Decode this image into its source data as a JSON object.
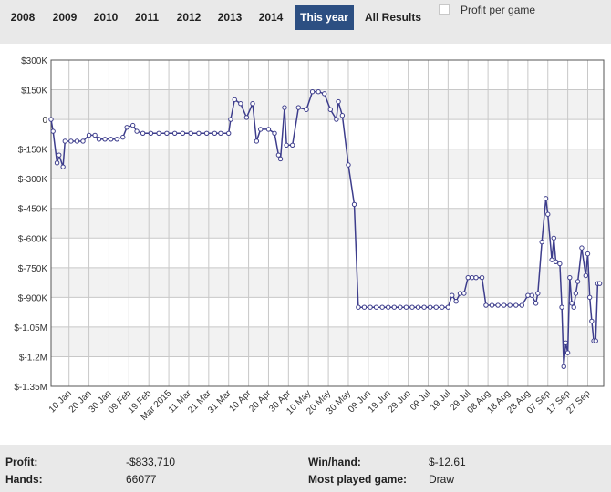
{
  "tabs": [
    {
      "label": "2008",
      "active": false
    },
    {
      "label": "2009",
      "active": false
    },
    {
      "label": "2010",
      "active": false
    },
    {
      "label": "2011",
      "active": false
    },
    {
      "label": "2012",
      "active": false
    },
    {
      "label": "2013",
      "active": false
    },
    {
      "label": "2014",
      "active": false
    },
    {
      "label": "This year",
      "active": true
    },
    {
      "label": "All Results",
      "active": false
    }
  ],
  "profit_toggle": {
    "label": "Profit per game",
    "checked": false
  },
  "stats": {
    "profit_label": "Profit:",
    "profit_value": "-$833,710",
    "hands_label": "Hands:",
    "hands_value": "66077",
    "winhand_label": "Win/hand:",
    "winhand_value": "$-12.61",
    "mostplayed_label": "Most played game:",
    "mostplayed_value": "Draw"
  },
  "colors": {
    "line": "#3d3d8c",
    "active_tab": "#2c4f82",
    "band": "#f2f2f2",
    "grid": "#c8c8c8"
  },
  "chart_data": {
    "type": "line",
    "title": "",
    "xlabel": "",
    "ylabel": "",
    "ylim": [
      -1350000,
      300000
    ],
    "xlim": [
      "2015-01-01",
      "2015-10-05"
    ],
    "grid": true,
    "y_ticks": [
      {
        "value": 300000,
        "label": "$300K"
      },
      {
        "value": 150000,
        "label": "$150K"
      },
      {
        "value": 0,
        "label": "0"
      },
      {
        "value": -150000,
        "label": "$-150K"
      },
      {
        "value": -300000,
        "label": "$-300K"
      },
      {
        "value": -450000,
        "label": "$-450K"
      },
      {
        "value": -600000,
        "label": "$-600K"
      },
      {
        "value": -750000,
        "label": "$-750K"
      },
      {
        "value": -900000,
        "label": "$-900K"
      },
      {
        "value": -1050000,
        "label": "$-1.05M"
      },
      {
        "value": -1200000,
        "label": "$-1.2M"
      },
      {
        "value": -1350000,
        "label": "$-1.35M"
      }
    ],
    "x_ticks": [
      {
        "date": "2015-01-10",
        "label": "10 Jan"
      },
      {
        "date": "2015-01-20",
        "label": "20 Jan"
      },
      {
        "date": "2015-01-30",
        "label": "30 Jan"
      },
      {
        "date": "2015-02-09",
        "label": "09 Feb"
      },
      {
        "date": "2015-02-19",
        "label": "19 Feb"
      },
      {
        "date": "2015-03-01",
        "label": "Mar 2015"
      },
      {
        "date": "2015-03-11",
        "label": "11 Mar"
      },
      {
        "date": "2015-03-21",
        "label": "21 Mar"
      },
      {
        "date": "2015-03-31",
        "label": "31 Mar"
      },
      {
        "date": "2015-04-10",
        "label": "10 Apr"
      },
      {
        "date": "2015-04-20",
        "label": "20 Apr"
      },
      {
        "date": "2015-04-30",
        "label": "30 Apr"
      },
      {
        "date": "2015-05-10",
        "label": "10 May"
      },
      {
        "date": "2015-05-20",
        "label": "20 May"
      },
      {
        "date": "2015-05-30",
        "label": "30 May"
      },
      {
        "date": "2015-06-09",
        "label": "09 Jun"
      },
      {
        "date": "2015-06-19",
        "label": "19 Jun"
      },
      {
        "date": "2015-06-29",
        "label": "29 Jun"
      },
      {
        "date": "2015-07-09",
        "label": "09 Jul"
      },
      {
        "date": "2015-07-19",
        "label": "19 Jul"
      },
      {
        "date": "2015-07-29",
        "label": "29 Jul"
      },
      {
        "date": "2015-08-08",
        "label": "08 Aug"
      },
      {
        "date": "2015-08-18",
        "label": "18 Aug"
      },
      {
        "date": "2015-08-28",
        "label": "28 Aug"
      },
      {
        "date": "2015-09-07",
        "label": "07 Sep"
      },
      {
        "date": "2015-09-17",
        "label": "17 Sep"
      },
      {
        "date": "2015-09-27",
        "label": "27 Sep"
      }
    ],
    "series": [
      {
        "points": [
          [
            "2015-01-01",
            0
          ],
          [
            "2015-01-02",
            -60000
          ],
          [
            "2015-01-04",
            -220000
          ],
          [
            "2015-01-05",
            -180000
          ],
          [
            "2015-01-07",
            -240000
          ],
          [
            "2015-01-08",
            -110000
          ],
          [
            "2015-01-11",
            -110000
          ],
          [
            "2015-01-14",
            -110000
          ],
          [
            "2015-01-17",
            -110000
          ],
          [
            "2015-01-20",
            -80000
          ],
          [
            "2015-01-23",
            -80000
          ],
          [
            "2015-01-25",
            -100000
          ],
          [
            "2015-01-28",
            -100000
          ],
          [
            "2015-01-31",
            -100000
          ],
          [
            "2015-02-03",
            -100000
          ],
          [
            "2015-02-06",
            -90000
          ],
          [
            "2015-02-08",
            -40000
          ],
          [
            "2015-02-11",
            -30000
          ],
          [
            "2015-02-13",
            -60000
          ],
          [
            "2015-02-16",
            -70000
          ],
          [
            "2015-02-20",
            -70000
          ],
          [
            "2015-02-24",
            -70000
          ],
          [
            "2015-02-28",
            -70000
          ],
          [
            "2015-03-04",
            -70000
          ],
          [
            "2015-03-08",
            -70000
          ],
          [
            "2015-03-12",
            -70000
          ],
          [
            "2015-03-16",
            -70000
          ],
          [
            "2015-03-20",
            -70000
          ],
          [
            "2015-03-24",
            -70000
          ],
          [
            "2015-03-27",
            -70000
          ],
          [
            "2015-03-31",
            -70000
          ],
          [
            "2015-04-01",
            0
          ],
          [
            "2015-04-03",
            100000
          ],
          [
            "2015-04-06",
            80000
          ],
          [
            "2015-04-09",
            10000
          ],
          [
            "2015-04-12",
            80000
          ],
          [
            "2015-04-14",
            -110000
          ],
          [
            "2015-04-16",
            -50000
          ],
          [
            "2015-04-20",
            -50000
          ],
          [
            "2015-04-23",
            -70000
          ],
          [
            "2015-04-25",
            -180000
          ],
          [
            "2015-04-26",
            -200000
          ],
          [
            "2015-04-28",
            60000
          ],
          [
            "2015-04-29",
            -130000
          ],
          [
            "2015-05-02",
            -130000
          ],
          [
            "2015-05-05",
            60000
          ],
          [
            "2015-05-09",
            50000
          ],
          [
            "2015-05-12",
            140000
          ],
          [
            "2015-05-15",
            140000
          ],
          [
            "2015-05-18",
            130000
          ],
          [
            "2015-05-21",
            50000
          ],
          [
            "2015-05-24",
            0
          ],
          [
            "2015-05-25",
            90000
          ],
          [
            "2015-05-27",
            20000
          ],
          [
            "2015-05-30",
            -230000
          ],
          [
            "2015-06-02",
            -430000
          ],
          [
            "2015-06-04",
            -950000
          ],
          [
            "2015-06-07",
            -950000
          ],
          [
            "2015-06-10",
            -950000
          ],
          [
            "2015-06-13",
            -950000
          ],
          [
            "2015-06-16",
            -950000
          ],
          [
            "2015-06-19",
            -950000
          ],
          [
            "2015-06-22",
            -950000
          ],
          [
            "2015-06-25",
            -950000
          ],
          [
            "2015-06-28",
            -950000
          ],
          [
            "2015-07-01",
            -950000
          ],
          [
            "2015-07-04",
            -950000
          ],
          [
            "2015-07-07",
            -950000
          ],
          [
            "2015-07-10",
            -950000
          ],
          [
            "2015-07-13",
            -950000
          ],
          [
            "2015-07-16",
            -950000
          ],
          [
            "2015-07-19",
            -950000
          ],
          [
            "2015-07-21",
            -890000
          ],
          [
            "2015-07-23",
            -920000
          ],
          [
            "2015-07-25",
            -880000
          ],
          [
            "2015-07-27",
            -880000
          ],
          [
            "2015-07-29",
            -800000
          ],
          [
            "2015-07-31",
            -800000
          ],
          [
            "2015-08-02",
            -800000
          ],
          [
            "2015-08-05",
            -800000
          ],
          [
            "2015-08-07",
            -940000
          ],
          [
            "2015-08-10",
            -940000
          ],
          [
            "2015-08-13",
            -940000
          ],
          [
            "2015-08-16",
            -940000
          ],
          [
            "2015-08-19",
            -940000
          ],
          [
            "2015-08-22",
            -940000
          ],
          [
            "2015-08-25",
            -940000
          ],
          [
            "2015-08-28",
            -890000
          ],
          [
            "2015-08-30",
            -890000
          ],
          [
            "2015-09-01",
            -930000
          ],
          [
            "2015-09-02",
            -880000
          ],
          [
            "2015-09-04",
            -620000
          ],
          [
            "2015-09-06",
            -400000
          ],
          [
            "2015-09-07",
            -480000
          ],
          [
            "2015-09-09",
            -710000
          ],
          [
            "2015-09-10",
            -600000
          ],
          [
            "2015-09-11",
            -720000
          ],
          [
            "2015-09-13",
            -730000
          ],
          [
            "2015-09-14",
            -950000
          ],
          [
            "2015-09-15",
            -1250000
          ],
          [
            "2015-09-16",
            -1130000
          ],
          [
            "2015-09-17",
            -1180000
          ],
          [
            "2015-09-18",
            -800000
          ],
          [
            "2015-09-19",
            -930000
          ],
          [
            "2015-09-20",
            -950000
          ],
          [
            "2015-09-21",
            -880000
          ],
          [
            "2015-09-22",
            -820000
          ],
          [
            "2015-09-24",
            -650000
          ],
          [
            "2015-09-26",
            -790000
          ],
          [
            "2015-09-27",
            -680000
          ],
          [
            "2015-09-28",
            -900000
          ],
          [
            "2015-09-29",
            -1020000
          ],
          [
            "2015-09-30",
            -1120000
          ],
          [
            "2015-10-01",
            -1120000
          ],
          [
            "2015-10-02",
            -830000
          ],
          [
            "2015-10-03",
            -830000
          ]
        ]
      }
    ]
  }
}
